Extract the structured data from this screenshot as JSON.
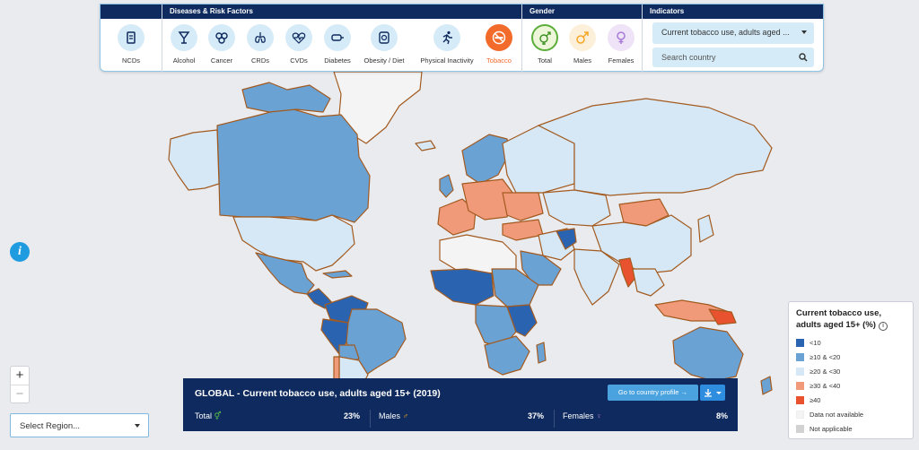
{
  "header": {
    "diseases_title": "Diseases & Risk Factors",
    "gender_title": "Gender",
    "indicators_title": "Indicators"
  },
  "diseases": [
    {
      "label": "NCDs",
      "icon": "ncd-icon"
    },
    {
      "label": "Alcohol",
      "icon": "alcohol-icon"
    },
    {
      "label": "Cancer",
      "icon": "cancer-icon"
    },
    {
      "label": "CRDs",
      "icon": "lungs-icon"
    },
    {
      "label": "CVDs",
      "icon": "heart-icon"
    },
    {
      "label": "Diabetes",
      "icon": "diabetes-icon"
    },
    {
      "label": "Obesity / Diet",
      "icon": "obesity-icon"
    },
    {
      "label": "Physical Inactivity",
      "icon": "running-icon"
    },
    {
      "label": "Tobacco",
      "icon": "no-smoking-icon"
    }
  ],
  "active_factor": "Tobacco",
  "gender": [
    {
      "label": "Total",
      "icon": "total-gender-icon"
    },
    {
      "label": "Males",
      "icon": "male-icon"
    },
    {
      "label": "Females",
      "icon": "female-icon"
    }
  ],
  "indicator": {
    "selected": "Current tobacco use, adults aged ...",
    "search_placeholder": "Search country"
  },
  "region": {
    "selected": "Select Region..."
  },
  "zoom": {
    "in": "+",
    "out": "−"
  },
  "info": "i",
  "legend": {
    "title": "Current tobacco use, adults aged 15+ (%)",
    "items": [
      {
        "label": "<10",
        "color": "#2a64b0"
      },
      {
        "label": "≥10 & <20",
        "color": "#6aa2d4"
      },
      {
        "label": "≥20 & <30",
        "color": "#d6e8f5"
      },
      {
        "label": "≥30 & <40",
        "color": "#f09a7a"
      },
      {
        "label": "≥40",
        "color": "#e8522e"
      },
      {
        "label": "Data not available",
        "color": "#f4f4f4"
      },
      {
        "label": "Not applicable",
        "color": "#d2d2d2"
      }
    ]
  },
  "global": {
    "title": "GLOBAL - Current tobacco use, adults aged 15+ (2019)",
    "profile_button": "Go to country profile",
    "total_label": "Total",
    "total_value": "23%",
    "males_label": "Males",
    "males_value": "37%",
    "females_label": "Females",
    "females_value": "8%"
  },
  "colors": {
    "navy": "#0e2a5e",
    "accent": "#f26b2b",
    "land_border": "#a35a1f"
  }
}
